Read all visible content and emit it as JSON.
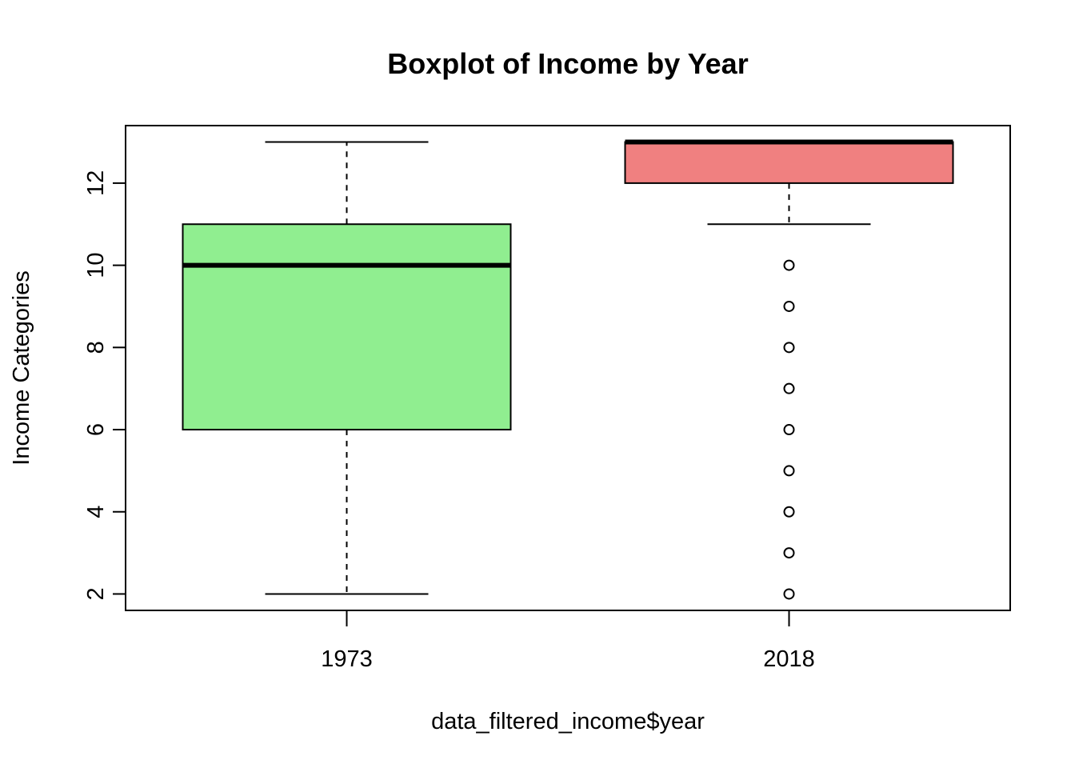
{
  "chart_data": {
    "type": "boxplot",
    "title": "Boxplot of Income by Year",
    "xlabel": "data_filtered_income$year",
    "ylabel": "Income Categories",
    "categories": [
      "1973",
      "2018"
    ],
    "yticks": [
      2,
      4,
      6,
      8,
      10,
      12
    ],
    "ylim": [
      1.6,
      13.4
    ],
    "grid": false,
    "legend": "none",
    "boxes": [
      {
        "category": "1973",
        "whisker_low": 2,
        "q1": 6,
        "median": 10,
        "q3": 11,
        "whisker_high": 13,
        "outliers": [],
        "color": "#90ee90"
      },
      {
        "category": "2018",
        "whisker_low": 11,
        "q1": 12,
        "median": 13,
        "q3": 13,
        "whisker_high": 13,
        "outliers": [
          10,
          9,
          8,
          7,
          6,
          5,
          4,
          3,
          2
        ],
        "color": "#f08080"
      }
    ]
  }
}
